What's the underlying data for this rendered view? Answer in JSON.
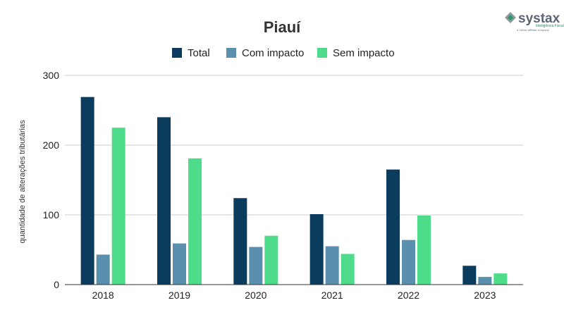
{
  "logo": {
    "name": "systax",
    "tagline": "Inteligência Fiscal",
    "sub": "a Vertex affiliate company"
  },
  "chart_data": {
    "type": "bar",
    "title": "Piauí",
    "ylabel": "quantidade de alterações tributárias",
    "xlabel": "",
    "categories": [
      "2018",
      "2019",
      "2020",
      "2021",
      "2022",
      "2023"
    ],
    "series": [
      {
        "name": "Total",
        "color": "#0b3c5d",
        "values": [
          269,
          240,
          124,
          101,
          165,
          27
        ]
      },
      {
        "name": "Com impacto",
        "color": "#5b8fae",
        "values": [
          43,
          59,
          54,
          55,
          64,
          11
        ]
      },
      {
        "name": "Sem impacto",
        "color": "#4edb8a",
        "values": [
          225,
          181,
          70,
          44,
          99,
          16
        ]
      }
    ],
    "ylim": [
      0,
      300
    ],
    "yticks": [
      0,
      100,
      200,
      300
    ],
    "grid": true,
    "legend": "top"
  }
}
